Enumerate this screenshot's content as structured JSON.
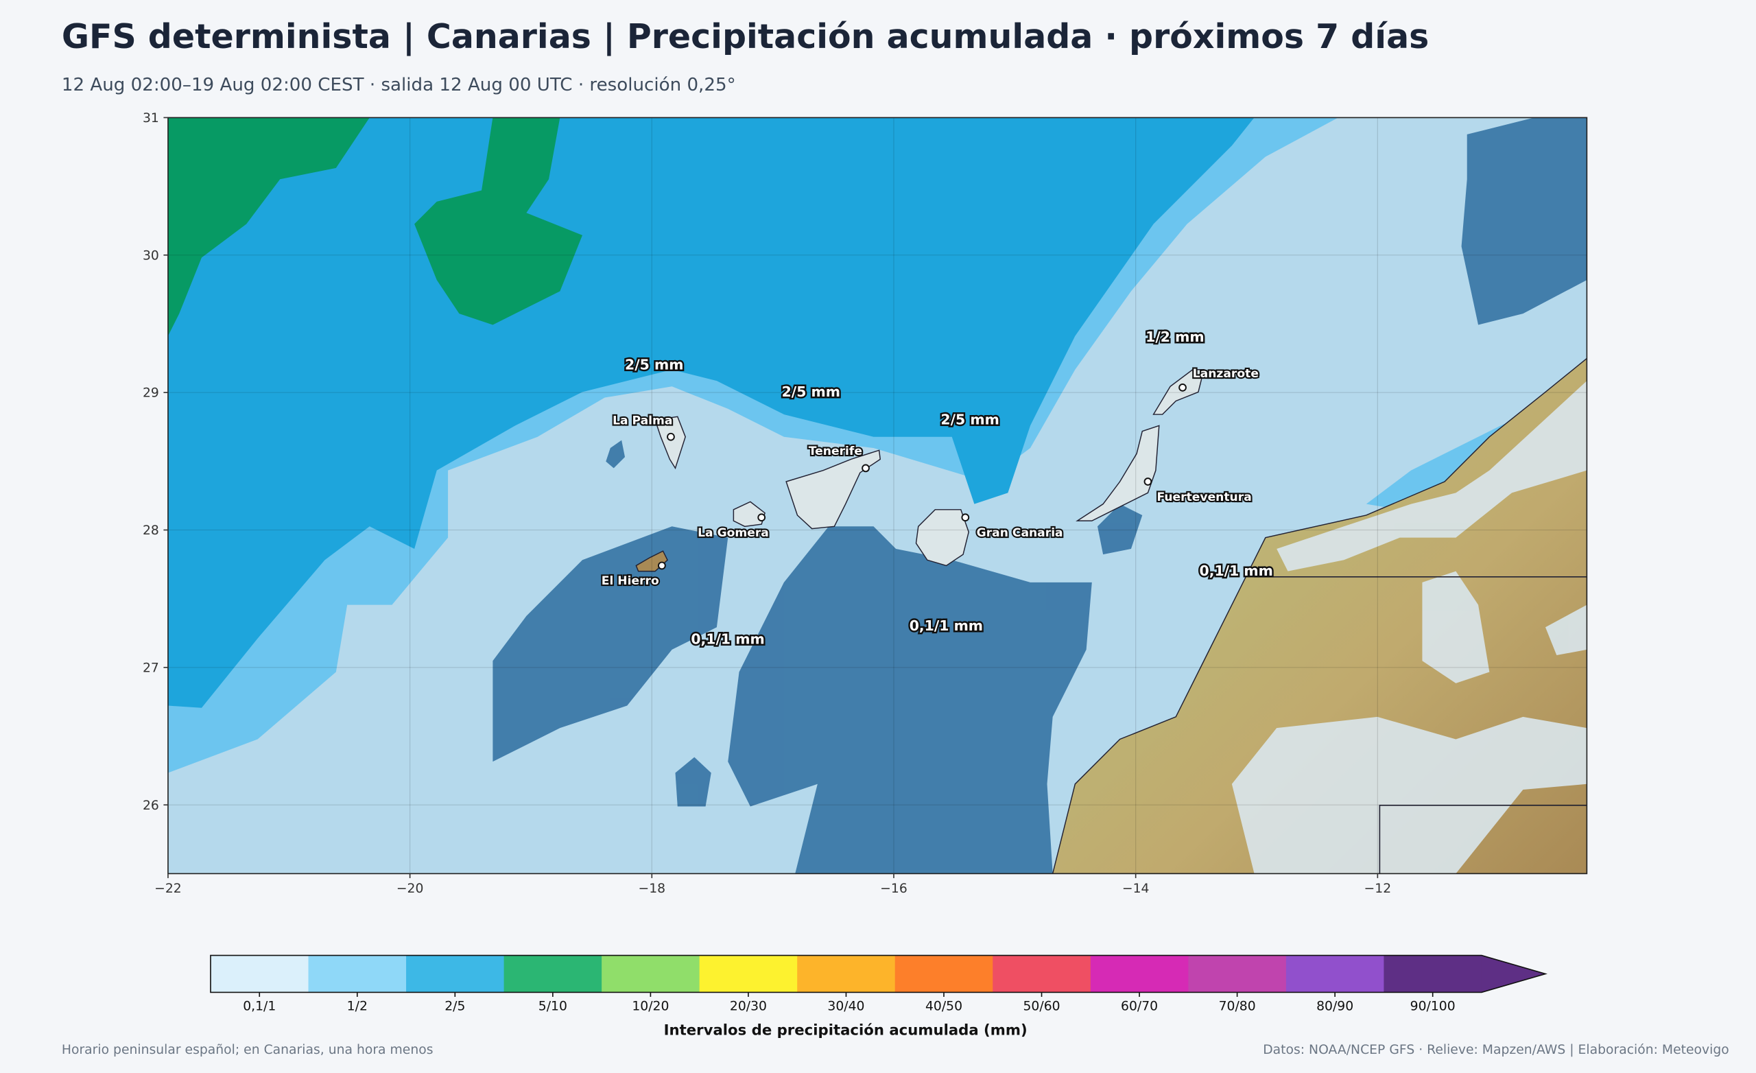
{
  "header": {
    "title": "GFS determinista | Canarias | Precipitación acumulada · próximos 7 días",
    "subtitle": "12 Aug 02:00–19 Aug 02:00 CEST · salida 12 Aug 00 UTC · resolución 0,25°"
  },
  "map": {
    "lon_range": [
      -22,
      -10.27
    ],
    "lat_range": [
      25.5,
      31
    ],
    "xticks": [
      {
        "value": -22,
        "label": "−22"
      },
      {
        "value": -20,
        "label": "−20"
      },
      {
        "value": -18,
        "label": "−18"
      },
      {
        "value": -16,
        "label": "−16"
      },
      {
        "value": -14,
        "label": "−14"
      },
      {
        "value": -12,
        "label": "−12"
      }
    ],
    "yticks": [
      26,
      27,
      28,
      29,
      30,
      31
    ],
    "islands": [
      "La Palma",
      "Tenerife",
      "La Gomera",
      "El Hierro",
      "Gran Canaria",
      "Lanzarote",
      "Fuerteventura"
    ],
    "labels": [
      "2/5 mm",
      "2/5 mm",
      "2/5 mm",
      "1/2 mm",
      "0,1/1 mm",
      "0,1/1 mm",
      "0,1/1 mm"
    ]
  },
  "colorbar": {
    "title": "Intervalos de precipitación acumulada (mm)",
    "intervals": [
      {
        "label": "0,1/1",
        "color": "#dbf0fb"
      },
      {
        "label": "1/2",
        "color": "#8fd8f8"
      },
      {
        "label": "2/5",
        "color": "#3db8e6"
      },
      {
        "label": "5/10",
        "color": "#2bb673"
      },
      {
        "label": "10/20",
        "color": "#90de6a"
      },
      {
        "label": "20/30",
        "color": "#fdf22f"
      },
      {
        "label": "30/40",
        "color": "#fdb42a"
      },
      {
        "label": "40/50",
        "color": "#fd7f2a"
      },
      {
        "label": "50/60",
        "color": "#ef4f63"
      },
      {
        "label": "60/70",
        "color": "#d62ab5"
      },
      {
        "label": "70/80",
        "color": "#c044ae"
      },
      {
        "label": "80/90",
        "color": "#9150cc"
      },
      {
        "label": "90/100",
        "color": "#5e2f85"
      }
    ]
  },
  "footer": {
    "left": "Horario peninsular español; en Canarias, una hora menos",
    "right": "Datos: NOAA/NCEP GFS · Relieve: Mapzen/AWS | Elaboración: Meteovigo"
  }
}
